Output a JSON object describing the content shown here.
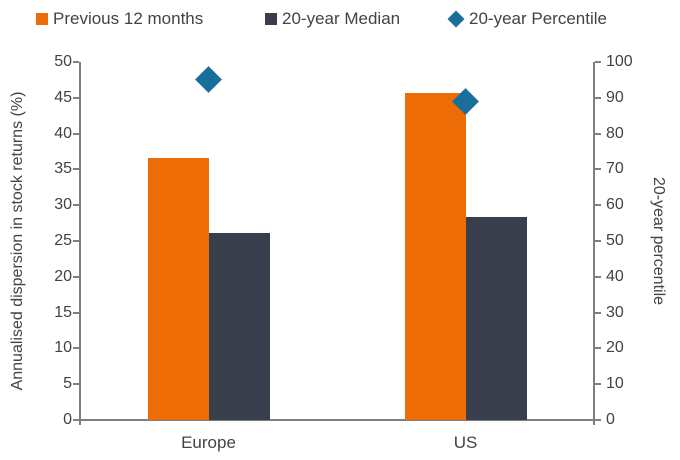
{
  "colors": {
    "bar_previous_12_months": "#ED6C05",
    "bar_20_year_median": "#383E4C",
    "diamond_20_year_percentile": "#186F9B",
    "axis_line": "#7F7F7F",
    "text": "#3F4447"
  },
  "legend": {
    "items": [
      {
        "label": "Previous 12 months",
        "marker": "square",
        "color": "#ED6C05"
      },
      {
        "label": "20-year Median",
        "marker": "square",
        "color": "#383E4C"
      },
      {
        "label": "20-year Percentile",
        "marker": "diamond",
        "color": "#186F9B"
      }
    ]
  },
  "chart_data": {
    "type": "bar",
    "title": "",
    "categories": [
      "Europe",
      "US"
    ],
    "series": [
      {
        "name": "Previous 12 months",
        "type": "bar",
        "axis": "left",
        "color": "#ED6C05",
        "values": [
          36.6,
          45.7
        ]
      },
      {
        "name": "20-year Median",
        "type": "bar",
        "axis": "left",
        "color": "#383E4C",
        "values": [
          26.1,
          28.3
        ]
      },
      {
        "name": "20-year Percentile",
        "type": "point-diamond",
        "axis": "right",
        "color": "#186F9B",
        "values": [
          95,
          89
        ]
      }
    ],
    "left_axis": {
      "label": "Annualised dispersion in stock returns (%)",
      "min": 0,
      "max": 50,
      "step": 5,
      "tick_labels": [
        "0",
        "5",
        "10",
        "15",
        "20",
        "25",
        "30",
        "35",
        "40",
        "45",
        "50"
      ]
    },
    "right_axis": {
      "label": "20-year percentile",
      "min": 0,
      "max": 100,
      "step": 10,
      "tick_labels": [
        "0",
        "10",
        "20",
        "30",
        "40",
        "50",
        "60",
        "70",
        "80",
        "90",
        "100"
      ]
    },
    "grid": false,
    "legend_position": "top"
  }
}
